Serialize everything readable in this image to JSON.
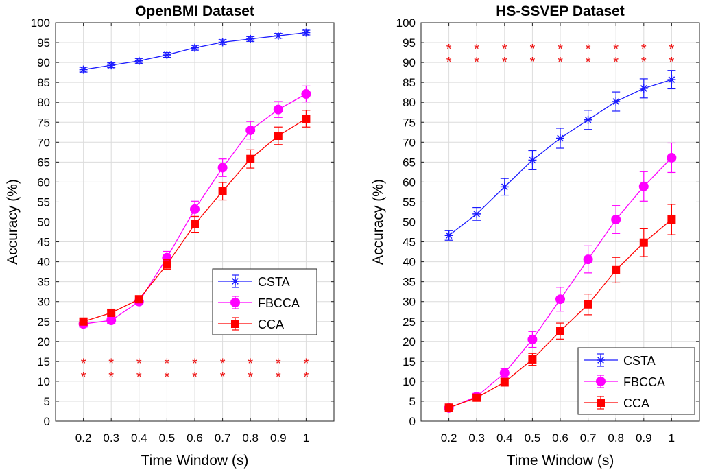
{
  "colors": {
    "CSTA": "#1a1aff",
    "FBCCA": "#ff00ff",
    "CCA": "#ff0000",
    "significance": "#ee1111",
    "grid": "#dcdcdc"
  },
  "chart_data": [
    {
      "type": "line",
      "title": "OpenBMI Dataset",
      "xlabel": "Time Window (s)",
      "ylabel": "Accuracy (%)",
      "ylim": [
        0,
        100
      ],
      "x": [
        0.2,
        0.3,
        0.4,
        0.5,
        0.6,
        0.7,
        0.8,
        0.9,
        1
      ],
      "x_tick_labels": [
        "0.2",
        "0.3",
        "0.4",
        "0.5",
        "0.6",
        "0.7",
        "0.8",
        "0.9",
        "1"
      ],
      "y_ticks": [
        0,
        5,
        10,
        15,
        20,
        25,
        30,
        35,
        40,
        45,
        50,
        55,
        60,
        65,
        70,
        75,
        80,
        85,
        90,
        95,
        100
      ],
      "grid": true,
      "legend_position": "lower-right",
      "series": [
        {
          "name": "CSTA",
          "marker": "star",
          "values": [
            88.2,
            89.3,
            90.4,
            91.9,
            93.7,
            95.1,
            95.9,
            96.7,
            97.5
          ],
          "errors": [
            0.6,
            0.6,
            0.6,
            0.6,
            0.6,
            0.6,
            0.6,
            0.6,
            0.6
          ]
        },
        {
          "name": "FBCCA",
          "marker": "circle",
          "values": [
            24.4,
            25.3,
            30.0,
            41.0,
            53.2,
            63.6,
            73.0,
            78.2,
            82.1
          ],
          "errors": [
            0.8,
            0.8,
            0.8,
            1.6,
            2.0,
            2.2,
            2.2,
            2.0,
            2.0
          ]
        },
        {
          "name": "CCA",
          "marker": "square",
          "values": [
            25.0,
            27.2,
            30.6,
            39.3,
            49.4,
            57.7,
            65.8,
            71.6,
            75.9
          ],
          "errors": [
            0.7,
            0.7,
            0.8,
            1.2,
            2.0,
            2.2,
            2.3,
            2.2,
            2.1
          ]
        }
      ],
      "significance_rows": [
        {
          "symbol": "*",
          "y": 15.6,
          "count": 9
        },
        {
          "symbol": "*",
          "y": 12.2,
          "count": 9
        }
      ]
    },
    {
      "type": "line",
      "title": "HS-SSVEP Dataset",
      "xlabel": "Time Window (s)",
      "ylabel": "Accuracy (%)",
      "ylim": [
        0,
        100
      ],
      "x": [
        0.2,
        0.3,
        0.4,
        0.5,
        0.6,
        0.7,
        0.8,
        0.9,
        1
      ],
      "x_tick_labels": [
        "0.2",
        "0.3",
        "0.4",
        "0.5",
        "0.6",
        "0.7",
        "0.8",
        "0.9",
        "1"
      ],
      "y_ticks": [
        0,
        5,
        10,
        15,
        20,
        25,
        30,
        35,
        40,
        45,
        50,
        55,
        60,
        65,
        70,
        75,
        80,
        85,
        90,
        95,
        100
      ],
      "grid": true,
      "legend_position": "lower-right",
      "series": [
        {
          "name": "CSTA",
          "marker": "star",
          "values": [
            46.6,
            52.0,
            58.8,
            65.5,
            71.0,
            75.6,
            80.2,
            83.5,
            85.7
          ],
          "errors": [
            1.2,
            1.6,
            2.1,
            2.4,
            2.5,
            2.4,
            2.4,
            2.4,
            2.3
          ]
        },
        {
          "name": "FBCCA",
          "marker": "circle",
          "values": [
            3.3,
            6.2,
            12.1,
            20.5,
            30.6,
            40.6,
            50.6,
            58.9,
            66.1
          ],
          "errors": [
            0.6,
            0.8,
            1.1,
            2.0,
            3.0,
            3.4,
            3.5,
            3.7,
            3.7
          ]
        },
        {
          "name": "CCA",
          "marker": "square",
          "values": [
            3.4,
            5.9,
            9.8,
            15.5,
            22.6,
            29.3,
            37.9,
            44.8,
            50.6
          ],
          "errors": [
            0.6,
            0.8,
            1.0,
            1.5,
            2.0,
            2.6,
            3.2,
            3.5,
            3.8
          ]
        }
      ],
      "significance_rows": [
        {
          "symbol": "*",
          "y": 94.5,
          "count": 9
        },
        {
          "symbol": "*",
          "y": 91.2,
          "count": 9
        }
      ]
    }
  ]
}
